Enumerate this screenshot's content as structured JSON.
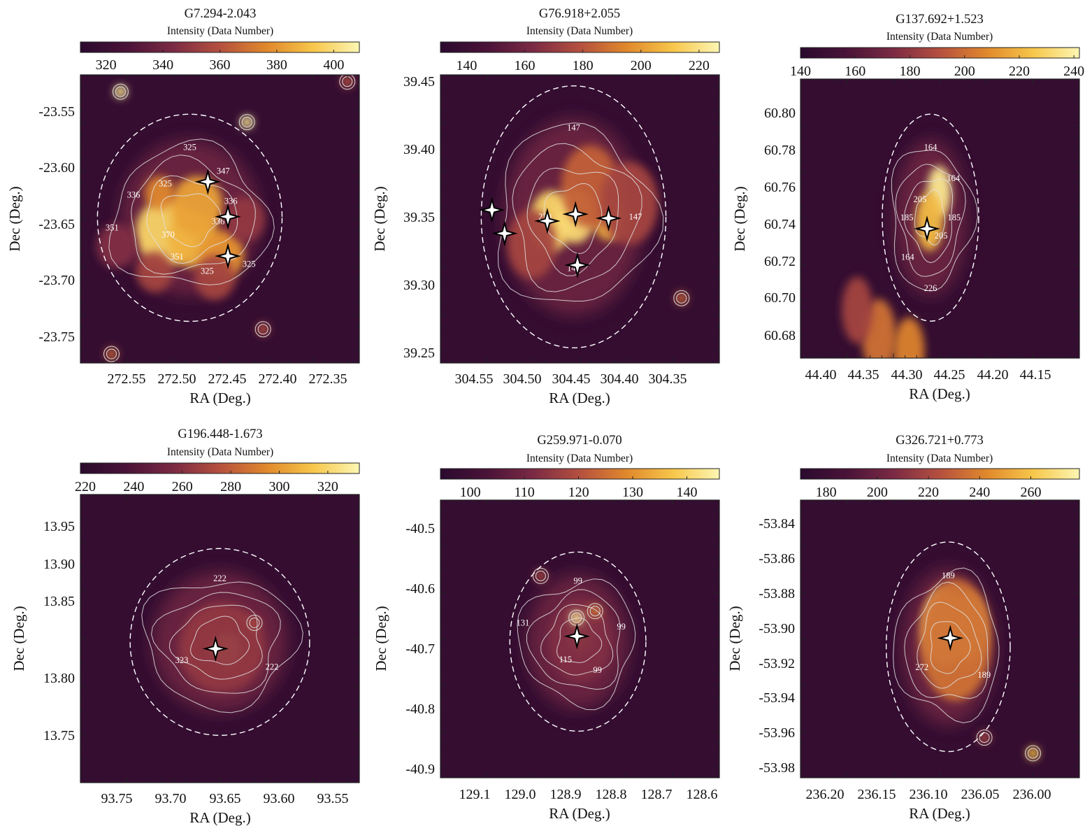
{
  "figure": {
    "colormap": [
      "#2a0a2e",
      "#4a1338",
      "#7b2a44",
      "#b5503f",
      "#e0882c",
      "#f7c64a",
      "#fcf6b3"
    ],
    "contour_color": "#e2e2e2",
    "circle_color": "#ffffff"
  },
  "chart_data": [
    {
      "type": "heatmap",
      "title": "G7.294-2.043",
      "colorbar_label": "Intensity (Data Number)",
      "colorbar_range": [
        311,
        409
      ],
      "colorbar_ticks": [
        "320",
        "340",
        "360",
        "380",
        "400"
      ],
      "xlabel": "RA (Deg.)",
      "ylabel": "Dec (Deg.)",
      "xlim": [
        272.584,
        272.306
      ],
      "ylim": [
        -23.776,
        -23.52
      ],
      "xticks": [
        "272.55",
        "272.50",
        "272.45",
        "272.40",
        "272.35"
      ],
      "yticks": [
        "-23.55",
        "-23.60",
        "-23.65",
        "-23.70",
        "-23.75"
      ],
      "contour_labels": [
        "325",
        "347",
        "336",
        "336",
        "325",
        "325",
        "351",
        "370",
        "351",
        "336",
        "325"
      ],
      "circle": {
        "ra": 272.475,
        "dec": -23.647,
        "radius_deg": 0.092
      },
      "stars": [
        {
          "ra": 272.457,
          "dec": -23.615
        },
        {
          "ra": 272.437,
          "dec": -23.646
        },
        {
          "ra": 272.437,
          "dec": -23.681
        }
      ],
      "blobs": [
        {
          "ra": 272.499,
          "dec": -23.66,
          "size_deg": 0.03,
          "level": 0.88
        },
        {
          "ra": 272.472,
          "dec": -23.666,
          "size_deg": 0.025,
          "level": 0.78
        },
        {
          "ra": 272.468,
          "dec": -23.636,
          "size_deg": 0.026,
          "level": 0.74
        },
        {
          "ra": 272.443,
          "dec": -23.68,
          "size_deg": 0.022,
          "level": 0.7
        },
        {
          "ra": 272.505,
          "dec": -23.625,
          "size_deg": 0.015,
          "level": 0.66
        },
        {
          "ra": 272.51,
          "dec": -23.695,
          "size_deg": 0.018,
          "level": 0.45
        },
        {
          "ra": 272.45,
          "dec": -23.7,
          "size_deg": 0.02,
          "level": 0.45
        },
        {
          "ra": 272.548,
          "dec": -23.672,
          "size_deg": 0.02,
          "level": 0.35
        },
        {
          "ra": 272.42,
          "dec": -23.648,
          "size_deg": 0.02,
          "level": 0.4
        }
      ],
      "point_sources": [
        {
          "ra": 272.544,
          "dec": -23.535,
          "level": 0.95
        },
        {
          "ra": 272.418,
          "dec": -23.562,
          "level": 0.95
        },
        {
          "ra": 272.553,
          "dec": -23.768,
          "level": 0.55
        },
        {
          "ra": 272.402,
          "dec": -23.746,
          "level": 0.5
        },
        {
          "ra": 272.318,
          "dec": -23.526,
          "level": 0.5
        }
      ]
    },
    {
      "type": "heatmap",
      "title": "G76.918+2.055",
      "colorbar_label": "Intensity (Data Number)",
      "colorbar_range": [
        131,
        227
      ],
      "colorbar_ticks": [
        "140",
        "160",
        "180",
        "200",
        "220"
      ],
      "xlabel": "RA (Deg.)",
      "ylabel": "Dec (Deg.)",
      "xticks": [
        "304.55",
        "304.50",
        "304.45",
        "304.40",
        "304.35"
      ],
      "yticks": [
        "39.45",
        "39.40",
        "39.35",
        "39.30",
        "39.25"
      ],
      "xlim": [
        304.594,
        304.307
      ],
      "ylim": [
        39.244,
        39.453
      ],
      "contour_labels": [
        "147",
        "147",
        "147",
        "220"
      ],
      "circle": {
        "ra": 304.457,
        "dec": 39.35,
        "radius_deg": 0.095
      },
      "stars": [
        {
          "ra": 304.541,
          "dec": 39.355
        },
        {
          "ra": 304.528,
          "dec": 39.338
        },
        {
          "ra": 304.484,
          "dec": 39.347
        },
        {
          "ra": 304.455,
          "dec": 39.352
        },
        {
          "ra": 304.421,
          "dec": 39.349
        },
        {
          "ra": 304.453,
          "dec": 39.315
        }
      ],
      "blobs": [
        {
          "ra": 304.48,
          "dec": 39.347,
          "size_deg": 0.022,
          "level": 0.88
        },
        {
          "ra": 304.455,
          "dec": 39.351,
          "size_deg": 0.02,
          "level": 0.9
        },
        {
          "ra": 304.421,
          "dec": 39.349,
          "size_deg": 0.016,
          "level": 0.78
        },
        {
          "ra": 304.44,
          "dec": 39.372,
          "size_deg": 0.03,
          "level": 0.55
        },
        {
          "ra": 304.4,
          "dec": 39.36,
          "size_deg": 0.03,
          "level": 0.45
        },
        {
          "ra": 304.5,
          "dec": 39.33,
          "size_deg": 0.025,
          "level": 0.45
        }
      ],
      "point_sources": [
        {
          "ra": 304.346,
          "dec": 39.291,
          "level": 0.55
        }
      ]
    },
    {
      "type": "heatmap",
      "title": "G137.692+1.523",
      "colorbar_label": "Intensity (Data Number)",
      "colorbar_range": [
        140,
        242
      ],
      "colorbar_ticks": [
        "140",
        "160",
        "180",
        "200",
        "220",
        "240"
      ],
      "xlabel": "RA (Deg.)",
      "ylabel": "Dec (Deg.)",
      "xticks": [
        "44.40",
        "44.35",
        "44.30",
        "44.25",
        "44.20",
        "44.15"
      ],
      "yticks": [
        "60.80",
        "60.78",
        "60.76",
        "60.74",
        "60.72",
        "60.70",
        "60.68"
      ],
      "xlim": [
        44.421,
        44.097
      ],
      "ylim": [
        60.668,
        60.819
      ],
      "contour_labels": [
        "164",
        "164",
        "185",
        "205",
        "226",
        "164",
        "185",
        "205"
      ],
      "circle": {
        "ra": 44.27,
        "dec": 60.744,
        "radius_deg": 0.056
      },
      "stars": [
        {
          "ra": 44.274,
          "dec": 60.738
        }
      ],
      "blobs": [
        {
          "ra": 44.26,
          "dec": 60.758,
          "size_deg": 0.014,
          "level": 0.95
        },
        {
          "ra": 44.271,
          "dec": 60.742,
          "size_deg": 0.016,
          "level": 0.8
        },
        {
          "ra": 44.33,
          "dec": 60.68,
          "size_deg": 0.02,
          "level": 0.6
        },
        {
          "ra": 44.295,
          "dec": 60.672,
          "size_deg": 0.018,
          "level": 0.65
        },
        {
          "ra": 44.355,
          "dec": 60.694,
          "size_deg": 0.018,
          "level": 0.45
        }
      ],
      "point_sources": []
    },
    {
      "type": "heatmap",
      "title": "G196.448-1.673",
      "colorbar_label": "Intensity (Data Number)",
      "colorbar_range": [
        218,
        333
      ],
      "colorbar_ticks": [
        "220",
        "240",
        "260",
        "280",
        "300",
        "320"
      ],
      "xlabel": "RA (Deg.)",
      "ylabel": "Dec (Deg.)",
      "xticks": [
        "93.75",
        "93.70",
        "93.65",
        "93.60",
        "93.55"
      ],
      "yticks": [
        "13.95",
        "13.90",
        "13.85",
        "13.80",
        "13.75"
      ],
      "xlim": [
        93.786,
        93.528
      ],
      "ylim": [
        13.709,
        13.965
      ],
      "contour_labels": [
        "222",
        "222",
        "323"
      ],
      "circle": {
        "ra": 93.657,
        "dec": 13.834,
        "radius_deg": 0.083
      },
      "stars": [
        {
          "ra": 93.661,
          "dec": 13.828
        }
      ],
      "blobs": [
        {
          "ra": 93.651,
          "dec": 13.828,
          "size_deg": 0.014,
          "level": 0.95
        },
        {
          "ra": 93.655,
          "dec": 13.829,
          "size_deg": 0.04,
          "level": 0.4
        }
      ],
      "point_sources": [
        {
          "ra": 93.625,
          "dec": 13.851,
          "level": 0.45
        }
      ]
    },
    {
      "type": "heatmap",
      "title": "G259.971-0.070",
      "colorbar_label": "Intensity (Data Number)",
      "colorbar_range": [
        94.5,
        146
      ],
      "colorbar_ticks": [
        "100",
        "110",
        "120",
        "130",
        "140"
      ],
      "xlabel": "RA (Deg.)",
      "ylabel": "Dec (Deg.)",
      "xticks": [
        "129.1",
        "129.0",
        "128.9",
        "128.8",
        "128.7",
        "128.6"
      ],
      "yticks": [
        "-40.5",
        "-40.6",
        "-40.7",
        "-40.8",
        "-40.9"
      ],
      "xlim": [
        129.178,
        128.563
      ],
      "ylim": [
        -40.91,
        -40.445
      ],
      "contour_labels": [
        "99",
        "99",
        "99",
        "115",
        "131"
      ],
      "circle": {
        "ra": 128.875,
        "dec": -40.682,
        "radius_deg": 0.15
      },
      "stars": [
        {
          "ra": 128.877,
          "dec": -40.673
        }
      ],
      "blobs": [
        {
          "ra": 128.87,
          "dec": -40.672,
          "size_deg": 0.03,
          "level": 0.8
        },
        {
          "ra": 128.87,
          "dec": -40.68,
          "size_deg": 0.07,
          "level": 0.35
        }
      ],
      "point_sources": [
        {
          "ra": 128.878,
          "dec": -40.642,
          "level": 0.95
        },
        {
          "ra": 128.837,
          "dec": -40.631,
          "level": 0.6
        },
        {
          "ra": 128.957,
          "dec": -40.572,
          "level": 0.45
        }
      ]
    },
    {
      "type": "heatmap",
      "title": "G326.721+0.773",
      "colorbar_label": "Intensity (Data Number)",
      "colorbar_range": [
        170,
        279
      ],
      "colorbar_ticks": [
        "180",
        "200",
        "220",
        "240",
        "260"
      ],
      "xlabel": "RA (Deg.)",
      "ylabel": "Dec (Deg.)",
      "xticks": [
        "236.20",
        "236.15",
        "236.10",
        "236.05",
        "236.00"
      ],
      "yticks": [
        "-53.84",
        "-53.86",
        "-53.88",
        "-53.90",
        "-53.92",
        "-53.94",
        "-53.96",
        "-53.98"
      ],
      "xlim": [
        236.225,
        235.955
      ],
      "ylim": [
        -53.991,
        -53.832
      ],
      "contour_labels": [
        "189",
        "189",
        "272"
      ],
      "circle": {
        "ra": 236.082,
        "dec": -53.916,
        "radius_deg": 0.06
      },
      "stars": [
        {
          "ra": 236.08,
          "dec": -53.911
        }
      ],
      "blobs": [
        {
          "ra": 236.085,
          "dec": -53.905,
          "size_deg": 0.022,
          "level": 0.92
        },
        {
          "ra": 236.065,
          "dec": -53.905,
          "size_deg": 0.02,
          "level": 0.85
        },
        {
          "ra": 236.075,
          "dec": -53.912,
          "size_deg": 0.035,
          "level": 0.6
        }
      ],
      "point_sources": [
        {
          "ra": 236.0,
          "dec": -53.977,
          "level": 0.8
        },
        {
          "ra": 236.047,
          "dec": -53.968,
          "level": 0.45
        }
      ]
    }
  ]
}
